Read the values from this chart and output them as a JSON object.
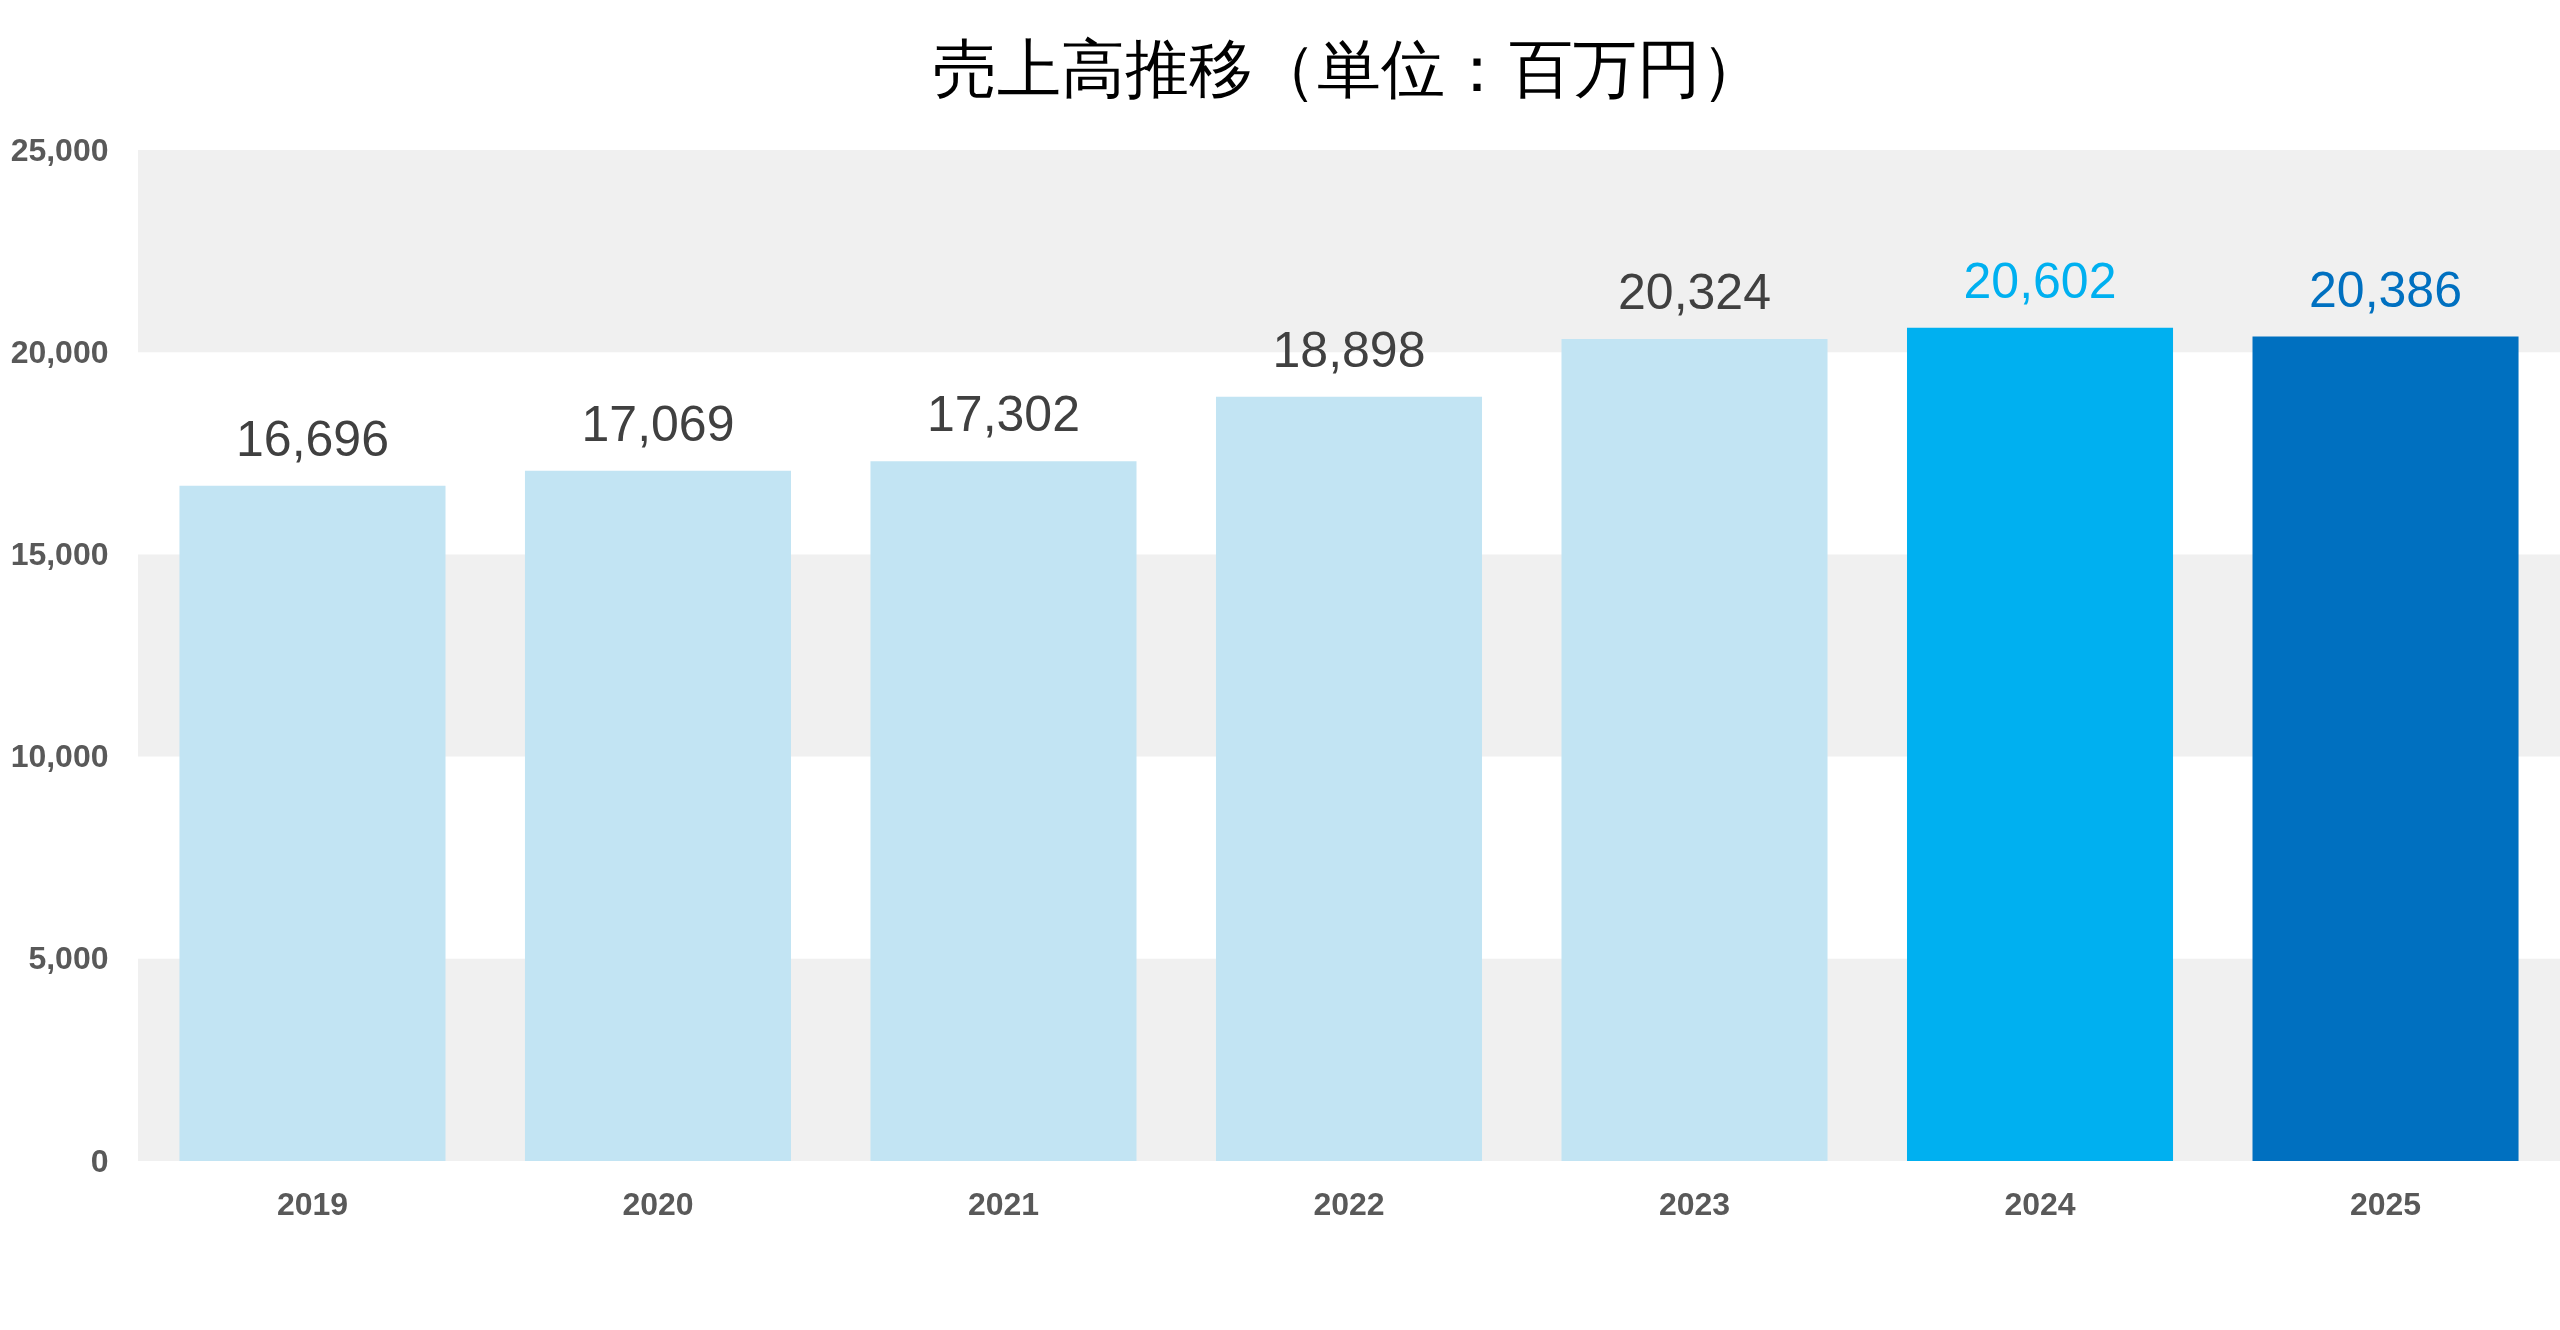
{
  "chart_data": {
    "type": "bar",
    "title": "売上高推移（単位：百万円）",
    "categories": [
      "2019",
      "2020",
      "2021",
      "2022",
      "2023",
      "2024",
      "2025"
    ],
    "values": [
      16696,
      17069,
      17302,
      18898,
      20324,
      20602,
      20386
    ],
    "colors": [
      "#c2e4f3",
      "#c2e4f3",
      "#c2e4f3",
      "#c2e4f3",
      "#c2e4f3",
      "#00b0f0",
      "#0070c0"
    ],
    "ylim": [
      0,
      25000
    ],
    "yticks": [
      {
        "value": 0,
        "label": "0"
      },
      {
        "value": 5000,
        "label": "5,000"
      },
      {
        "value": 10000,
        "label": "10,000"
      },
      {
        "value": 15000,
        "label": "15,000"
      },
      {
        "value": 20000,
        "label": "20,000"
      },
      {
        "value": 25000,
        "label": "25,000"
      }
    ],
    "bands": [
      {
        "axis": "y",
        "from": 0,
        "to": 5000,
        "color": "#f0f0f0"
      },
      {
        "axis": "y",
        "from": 10000,
        "to": 15000,
        "color": "#f0f0f0"
      },
      {
        "axis": "y",
        "from": 20000,
        "to": 25000,
        "color": "#f0f0f0"
      }
    ],
    "value_labels": [
      "16,696",
      "17,069",
      "17,302",
      "18,898",
      "20,324",
      "20,602",
      "20,386"
    ]
  }
}
